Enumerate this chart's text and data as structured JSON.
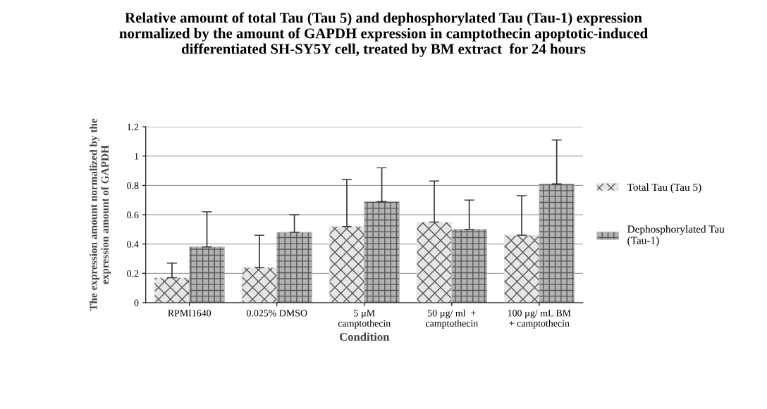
{
  "chart_data": {
    "type": "bar",
    "title": "Relative amount of total Tau (Tau 5) and dephosphorylated Tau (Tau-1) expression normalized by the amount of GAPDH expression in camptothecin apoptotic-induced differentiated SH-SY5Y cell, treated by BM extract  for 24 hours",
    "xlabel": "Condition",
    "ylabel": "The expression amount normalized by the\nexpression amount of GAPDH",
    "categories": [
      "RPMI1640",
      "0.025% DMSO",
      "5 µM\ncamptothecin",
      "50 µg/ ml  +\ncamptothecin",
      "100 µg/ mL BM\n+ camptothecin"
    ],
    "series": [
      {
        "name": "Total Tau (Tau 5)",
        "color": "#e6e6e6",
        "values": [
          0.17,
          0.24,
          0.52,
          0.55,
          0.46
        ],
        "errors": [
          [
            0.17,
            0.27
          ],
          [
            0.24,
            0.46
          ],
          [
            0.52,
            0.84
          ],
          [
            0.55,
            0.83
          ],
          [
            0.46,
            0.73
          ]
        ]
      },
      {
        "name": "Dephosphorylated Tau\n(Tau-1)",
        "color": "#b3b3b3",
        "values": [
          0.38,
          0.48,
          0.69,
          0.5,
          0.81
        ],
        "errors": [
          [
            0.38,
            0.62
          ],
          [
            0.48,
            0.6
          ],
          [
            0.69,
            0.92
          ],
          [
            0.5,
            0.7
          ],
          [
            0.81,
            1.11
          ]
        ]
      }
    ],
    "ylim": [
      0,
      1.2
    ],
    "yticks": [
      0,
      0.2,
      0.4,
      0.6,
      0.8,
      1,
      1.2
    ],
    "grid": "y",
    "legend": "right"
  }
}
